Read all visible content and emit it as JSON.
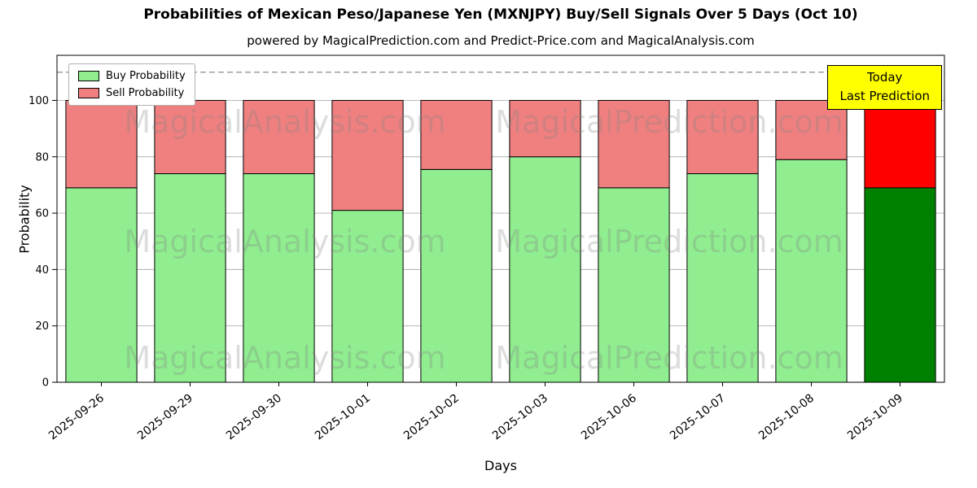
{
  "chart_data": {
    "type": "bar",
    "stacked": true,
    "title": "Probabilities of Mexican Peso/Japanese Yen (MXNJPY) Buy/Sell Signals Over 5 Days (Oct 10)",
    "subtitle": "powered by MagicalPrediction.com and Predict-Price.com and MagicalAnalysis.com",
    "xlabel": "Days",
    "ylabel": "Probability",
    "ylim": [
      0,
      116
    ],
    "yticks": [
      0,
      20,
      40,
      60,
      80,
      100
    ],
    "grid": true,
    "dashed_line_y": 110,
    "categories": [
      "2025-09-26",
      "2025-09-29",
      "2025-09-30",
      "2025-10-01",
      "2025-10-02",
      "2025-10-03",
      "2025-10-06",
      "2025-10-07",
      "2025-10-08",
      "2025-10-09"
    ],
    "series": [
      {
        "name": "Buy Probability",
        "values": [
          69,
          74,
          74,
          61,
          75.5,
          80,
          69,
          74,
          79,
          69
        ],
        "color": "#90EE90",
        "last_bar_color": "#008000"
      },
      {
        "name": "Sell Probability",
        "values": [
          31,
          26,
          26,
          39,
          24.5,
          20,
          31,
          26,
          21,
          31
        ],
        "color": "#F08080",
        "last_bar_color": "#FF0000"
      }
    ],
    "legend": {
      "position": "upper-left",
      "entries": [
        "Buy Probability",
        "Sell Probability"
      ]
    },
    "annotation": {
      "lines": [
        "Today",
        "Last Prediction"
      ],
      "bg": "#FFFF00"
    },
    "watermarks": [
      "MagicalAnalysis.com",
      "MagicalPrediction.com"
    ]
  }
}
